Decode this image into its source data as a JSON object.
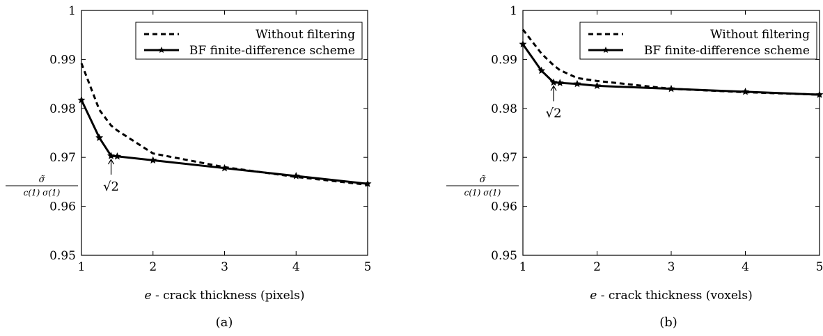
{
  "chart_data": [
    {
      "type": "line",
      "caption": "(a)",
      "xlabel_var": "e",
      "xlabel_rest": " - crack thickness (pixels)",
      "ylabel": {
        "num": "σ̃",
        "den": "c(1) σ(1)"
      },
      "xlim": [
        1,
        5
      ],
      "ylim": [
        0.95,
        1
      ],
      "xticks": [
        1,
        2,
        3,
        4,
        5
      ],
      "xtick_labels": [
        "1",
        "2",
        "3",
        "4",
        "5"
      ],
      "yticks": [
        0.95,
        0.96,
        0.97,
        0.98,
        0.99,
        1
      ],
      "ytick_labels": [
        "0.95",
        "0.96",
        "0.97",
        "0.98",
        "0.99",
        "1"
      ],
      "grid": false,
      "legend": "top-right",
      "series": [
        {
          "name": "Without filtering",
          "style": "dashed",
          "x": [
            1,
            1.25,
            1.414,
            1.5,
            2,
            3,
            4,
            5
          ],
          "y": [
            0.9892,
            0.9797,
            0.9765,
            0.9755,
            0.9708,
            0.968,
            0.966,
            0.9644
          ]
        },
        {
          "name": "BF finite-difference scheme",
          "style": "solid",
          "markers": true,
          "x": [
            1,
            1.25,
            1.414,
            1.5,
            2,
            3,
            4,
            5
          ],
          "y": [
            0.9817,
            0.974,
            0.9703,
            0.9702,
            0.9694,
            0.9678,
            0.9662,
            0.9646
          ]
        }
      ],
      "annotation": {
        "text": "√2",
        "x": 1.414,
        "y": 0.9703
      }
    },
    {
      "type": "line",
      "caption": "(b)",
      "xlabel_var": "e",
      "xlabel_rest": " - crack thickness (voxels)",
      "ylabel": {
        "num": "σ̃",
        "den": "c(1) σ(1)"
      },
      "xlim": [
        1,
        5
      ],
      "ylim": [
        0.95,
        1
      ],
      "xticks": [
        1,
        2,
        3,
        4,
        5
      ],
      "xtick_labels": [
        "1",
        "2",
        "3",
        "4",
        "5"
      ],
      "yticks": [
        0.95,
        0.96,
        0.97,
        0.98,
        0.99,
        1
      ],
      "ytick_labels": [
        "0.95",
        "0.96",
        "0.97",
        "0.98",
        "0.99",
        "1"
      ],
      "grid": false,
      "legend": "top-right",
      "series": [
        {
          "name": "Without filtering",
          "style": "dashed",
          "x": [
            1,
            1.25,
            1.414,
            1.5,
            1.732,
            2,
            3,
            4,
            5
          ],
          "y": [
            0.9961,
            0.9912,
            0.9888,
            0.9878,
            0.9862,
            0.9856,
            0.984,
            0.9833,
            0.9828
          ]
        },
        {
          "name": "BF finite-difference scheme",
          "style": "solid",
          "markers": true,
          "x": [
            1,
            1.25,
            1.414,
            1.5,
            1.732,
            2,
            3,
            4,
            5
          ],
          "y": [
            0.9931,
            0.9877,
            0.9853,
            0.9852,
            0.985,
            0.9846,
            0.984,
            0.9834,
            0.9828
          ]
        }
      ],
      "annotation": {
        "text": "√2",
        "x": 1.414,
        "y": 0.9853
      }
    }
  ]
}
